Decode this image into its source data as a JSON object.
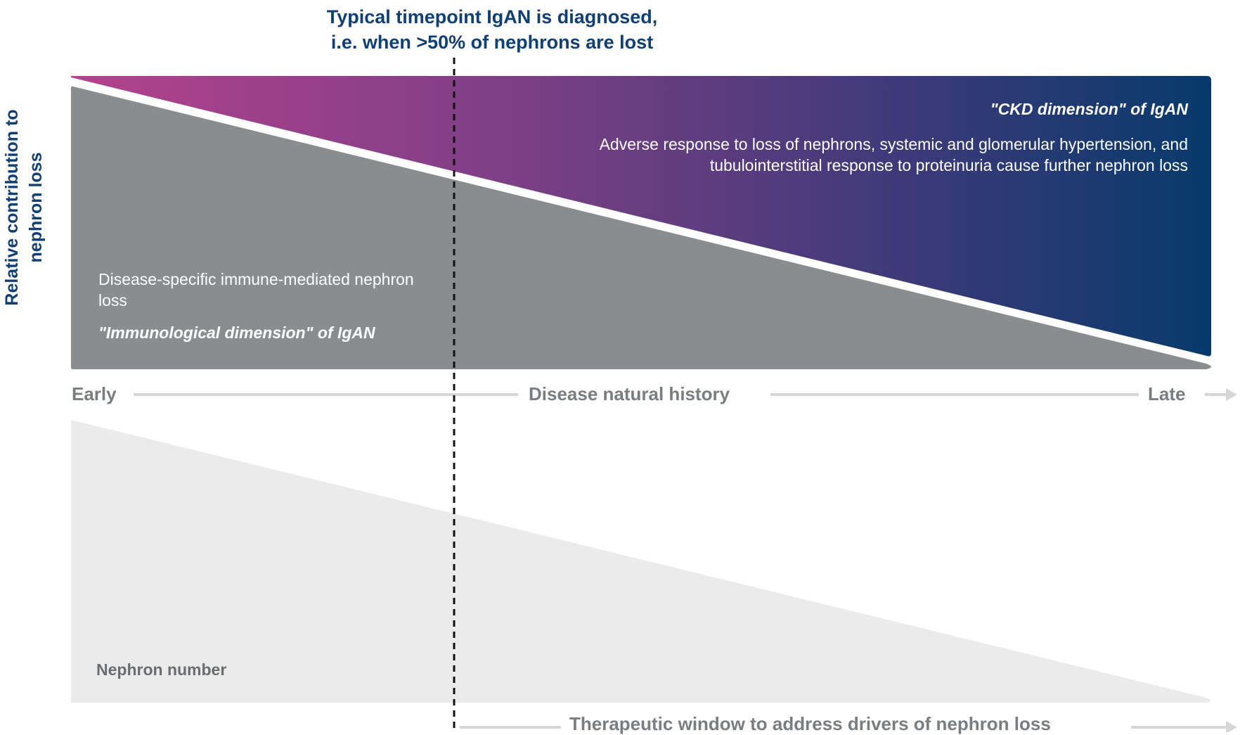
{
  "title": {
    "line1": "Typical timepoint IgAN is diagnosed,",
    "line2": "i.e. when >50% of nephrons are lost"
  },
  "y_axis_label": {
    "line1": "Relative contribution to",
    "line2": "nephron loss"
  },
  "ckd": {
    "title": "\"CKD dimension\" of IgAN",
    "description": "Adverse response to loss of nephrons, systemic and glomerular hypertension, and tubulointerstitial response to proteinuria cause further nephron loss"
  },
  "immunological": {
    "description": "Disease-specific immune-mediated nephron loss",
    "title": "\"Immunological dimension\" of IgAN"
  },
  "timeline": {
    "early": "Early",
    "middle": "Disease natural history",
    "late": "Late"
  },
  "nephron_number": "Nephron number",
  "therapeutic_window": "Therapeutic window to address drivers of nephron loss",
  "colors": {
    "navy": "#0f3f73",
    "magenta": "#b5428e",
    "purple": "#7b3f85",
    "deep_blue": "#073a6b",
    "gray_region": "#8a8d90",
    "light_gray_region": "#ebebeb",
    "axis_gray": "#d6d6d6",
    "label_gray": "#7a7d80"
  }
}
